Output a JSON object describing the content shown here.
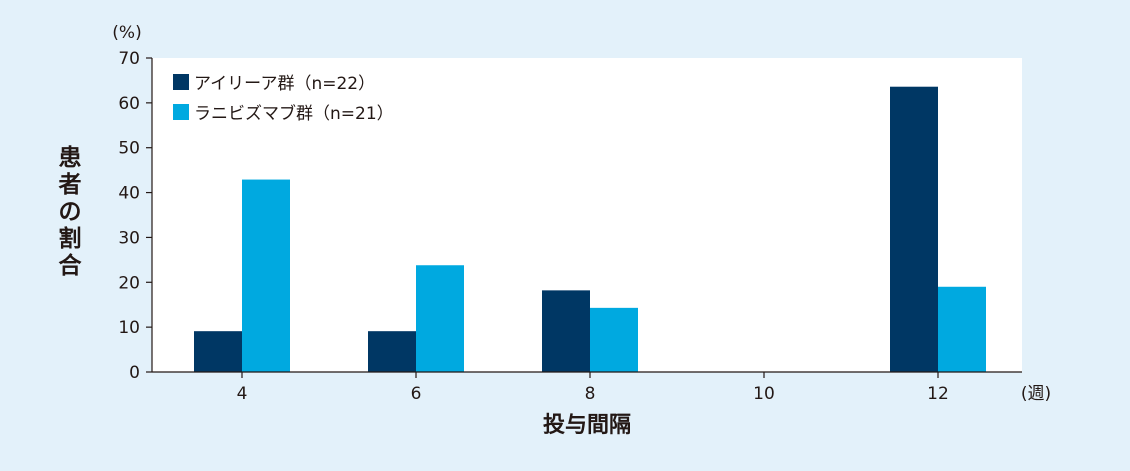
{
  "colors": {
    "page_background": "#e3f1fa",
    "plot_background": "#ffffff",
    "aflibercept": "#003764",
    "ranibizumab": "#00a9e0",
    "axis": "#231815",
    "text": "#231815"
  },
  "chart_data": {
    "type": "bar",
    "title": "",
    "xlabel": "投与間隔",
    "xunit": "(週)",
    "ylabel": "患者の割合",
    "yunit": "(%)",
    "ylim": [
      0,
      70
    ],
    "yticks": [
      "0",
      "10",
      "20",
      "30",
      "40",
      "50",
      "60",
      "70"
    ],
    "categories": [
      "4",
      "6",
      "8",
      "10",
      "12"
    ],
    "grid": false,
    "legend_position": "top-left",
    "series": [
      {
        "name": "アイリーア群（n=22）",
        "color": "#003764",
        "values": [
          9.1,
          9.1,
          18.2,
          0,
          63.6
        ]
      },
      {
        "name": "ラニビズマブ群（n=21）",
        "color": "#00a9e0",
        "values": [
          42.9,
          23.8,
          14.3,
          0,
          19.0
        ]
      }
    ]
  }
}
